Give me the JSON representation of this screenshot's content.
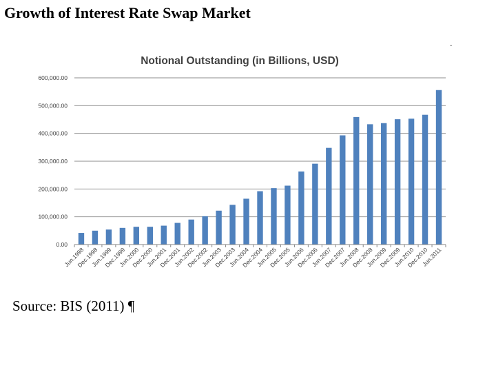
{
  "slide": {
    "title": "Growth of Interest Rate Swap Market",
    "stray_mark": "-",
    "source": "Source: BIS (2011) ¶"
  },
  "chart_data": {
    "type": "bar",
    "title": "Notional Outstanding (in Billions, USD)",
    "xlabel": "",
    "ylabel": "",
    "ylim": [
      0,
      600000
    ],
    "ytick_values": [
      0,
      100000,
      200000,
      300000,
      400000,
      500000,
      600000
    ],
    "ytick_labels": [
      "0.00",
      "100,000.00",
      "200,000.00",
      "300,000.00",
      "400,000.00",
      "500,000.00",
      "600,000.00"
    ],
    "grid": true,
    "bar_color": "#4f81bd",
    "categories": [
      "Jun.1998",
      "Dec.1998",
      "Jun.1999",
      "Dec.1999",
      "Jun.2000",
      "Dec.2000",
      "Jun.2001",
      "Dec.2001",
      "Jun.2002",
      "Dec.2002",
      "Jun.2003",
      "Dec.2003",
      "Jun.2004",
      "Dec.2004",
      "Jun.2005",
      "Dec.2005",
      "Jun.2006",
      "Dec.2006",
      "Jun.2007",
      "Dec.2007",
      "Jun.2008",
      "Dec.2008",
      "Jun.2009",
      "Dec.2009",
      "Jun.2010",
      "Dec.2010",
      "Jun.2011"
    ],
    "values": [
      42000,
      50000,
      54000,
      60000,
      64000,
      64000,
      68000,
      78000,
      90000,
      102000,
      122000,
      143000,
      165000,
      192000,
      203000,
      212000,
      263000,
      291000,
      348000,
      393000,
      459000,
      433000,
      437000,
      451000,
      453000,
      467000,
      556000
    ]
  }
}
